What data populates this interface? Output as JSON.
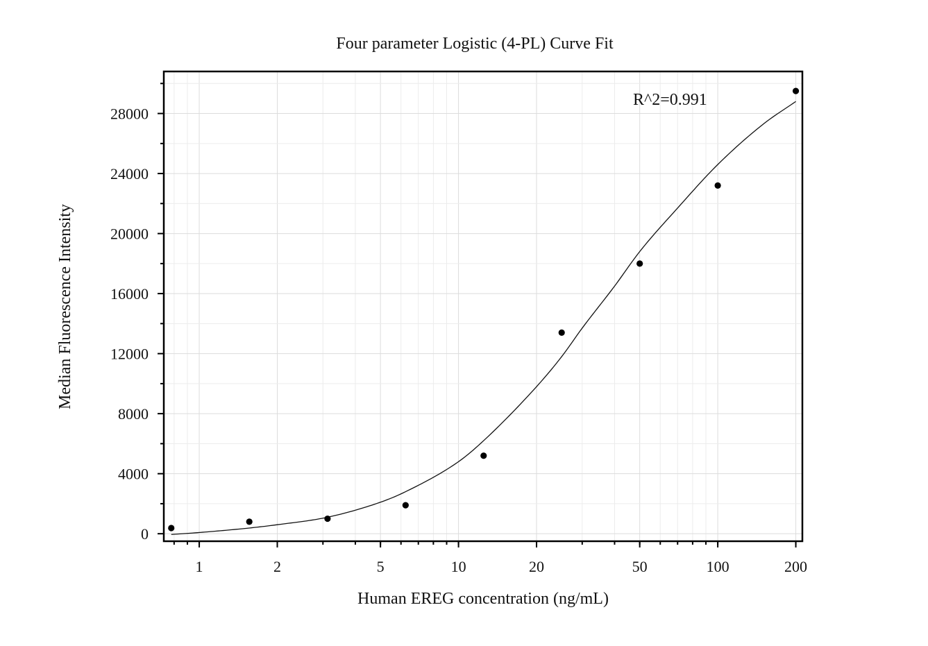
{
  "chart_data": {
    "type": "scatter",
    "title": "Four parameter Logistic (4-PL) Curve Fit",
    "xlabel": "Human EREG concentration (ng/mL)",
    "ylabel": "Median Fluorescence Intensity",
    "x_scale": "log",
    "xlim": [
      0.73,
      212
    ],
    "ylim": [
      -500,
      30800
    ],
    "x_ticks": [
      1,
      2,
      5,
      10,
      20,
      50,
      100,
      200
    ],
    "x_tick_labels": [
      "1",
      "2",
      "5",
      "10",
      "20",
      "50",
      "100",
      "200"
    ],
    "y_ticks": [
      0,
      4000,
      8000,
      12000,
      16000,
      20000,
      24000,
      28000
    ],
    "y_tick_labels": [
      "0",
      "4000",
      "8000",
      "12000",
      "16000",
      "20000",
      "24000",
      "28000"
    ],
    "grid": true,
    "annotation": "R^2=0.991",
    "series": [
      {
        "kind": "points",
        "x": [
          0.78,
          1.56,
          3.125,
          6.25,
          12.5,
          25,
          50,
          100,
          200
        ],
        "y": [
          380,
          800,
          1000,
          1900,
          5200,
          13400,
          18000,
          23200,
          29500
        ]
      },
      {
        "kind": "fit",
        "model": "4PL",
        "x": [
          0.78,
          1,
          1.56,
          2,
          3.125,
          5,
          6.25,
          10,
          12.5,
          20,
          25,
          30,
          40,
          50,
          70,
          100,
          150,
          200
        ],
        "y": [
          -50,
          80,
          380,
          600,
          1100,
          2100,
          2800,
          4800,
          6200,
          9800,
          11800,
          13700,
          16500,
          18800,
          21700,
          24600,
          27300,
          28800
        ]
      }
    ]
  }
}
